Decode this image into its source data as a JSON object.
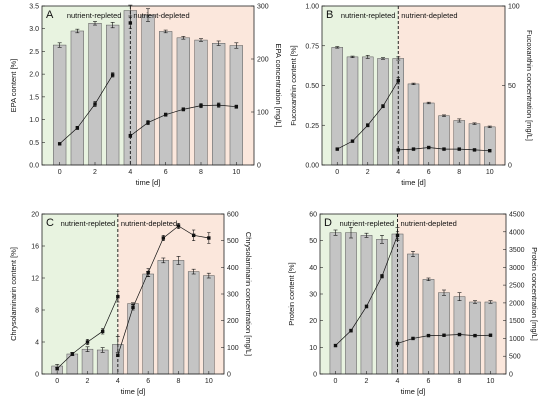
{
  "colors": {
    "replete_bg": "#e8f3e0",
    "deplete_bg": "#fbe7dc",
    "bar_fill": "#c4c4c4",
    "bar_stroke": "#555555",
    "line": "#111111"
  },
  "chart_data": [
    {
      "type": "bar",
      "panel": "A",
      "region_labels": [
        "nutrient-repleted",
        "nutrient-depleted"
      ],
      "xlabel": "time [d]",
      "ylabel": "EPA content [%]",
      "y2label": "EPA concentration [mg/L]",
      "x_ticks": [
        0,
        2,
        4,
        6,
        8,
        10
      ],
      "xlim": [
        -1,
        11
      ],
      "ylim": [
        0,
        3.5
      ],
      "y_ticks": [
        "0.0",
        "0.5",
        "1.0",
        "1.5",
        "2.0",
        "2.5",
        "3.0",
        "3.5"
      ],
      "y2lim": [
        0,
        300
      ],
      "y2_ticks": [
        0,
        100,
        200,
        300
      ],
      "switch_x": 4,
      "bars": {
        "x": [
          0,
          1,
          2,
          3,
          4,
          5,
          6,
          7,
          8,
          9,
          10
        ],
        "values": [
          2.64,
          2.95,
          3.12,
          3.08,
          3.4,
          3.3,
          2.94,
          2.8,
          2.75,
          2.68,
          2.63
        ],
        "errors": [
          0.05,
          0.04,
          0.04,
          0.06,
          0.12,
          0.14,
          0.03,
          0.03,
          0.03,
          0.05,
          0.06
        ]
      },
      "series": [
        {
          "x": [
            0,
            1,
            2,
            3
          ],
          "values": [
            40,
            70,
            115,
            170
          ],
          "errors": [
            2,
            3,
            5,
            4
          ]
        },
        {
          "x": [
            4
          ],
          "values": [
            268
          ],
          "errors": [
            10
          ]
        },
        {
          "x": [
            4,
            5,
            6,
            7,
            8,
            9,
            10
          ],
          "values": [
            55,
            80,
            95,
            105,
            112,
            113,
            110
          ],
          "errors": [
            3,
            4,
            3,
            3,
            4,
            4,
            3
          ]
        }
      ]
    },
    {
      "type": "bar",
      "panel": "B",
      "region_labels": [
        "nutrient-repleted",
        "nutrient-depleted"
      ],
      "xlabel": "time [d]",
      "ylabel": "Fucoxanthin content [%]",
      "y2label": "Fucoxanthin concentration [mg/L]",
      "x_ticks": [
        0,
        2,
        4,
        6,
        8,
        10
      ],
      "xlim": [
        -1,
        11
      ],
      "ylim": [
        0,
        1.0
      ],
      "y_ticks": [
        "0.00",
        "0.25",
        "0.50",
        "0.75",
        "1.00"
      ],
      "y2lim": [
        0,
        100
      ],
      "y2_ticks": [
        0,
        50,
        100
      ],
      "switch_x": 4,
      "bars": {
        "x": [
          0,
          1,
          2,
          3,
          4,
          5,
          6,
          7,
          8,
          9,
          10
        ],
        "values": [
          0.74,
          0.68,
          0.68,
          0.67,
          0.67,
          0.51,
          0.39,
          0.31,
          0.28,
          0.26,
          0.24
        ],
        "errors": [
          0.005,
          0.005,
          0.01,
          0.005,
          0.01,
          0.005,
          0.005,
          0.005,
          0.01,
          0.005,
          0.005
        ]
      },
      "series": [
        {
          "x": [
            0,
            1,
            2,
            3,
            4
          ],
          "values": [
            10,
            15,
            25,
            37,
            53
          ],
          "errors": [
            0.5,
            0.5,
            1,
            1,
            2
          ]
        },
        {
          "x": [
            4,
            5,
            6,
            7,
            8,
            9,
            10
          ],
          "values": [
            9.5,
            10,
            11,
            10,
            10,
            9.5,
            9
          ],
          "errors": [
            0.5,
            0.5,
            0.5,
            0.5,
            0.5,
            0.5,
            0.5
          ]
        }
      ]
    },
    {
      "type": "bar",
      "panel": "C",
      "region_labels": [
        "nutrient-repleted",
        "nutrient-depleted"
      ],
      "xlabel": "time [d]",
      "ylabel": "Chrysolaminarin content [%]",
      "y2label": "Chrysolaminarin concentration [mg/L]",
      "x_ticks": [
        0,
        2,
        4,
        6,
        8,
        10
      ],
      "xlim": [
        -1,
        11
      ],
      "ylim": [
        0,
        20
      ],
      "y_ticks": [
        "0",
        "4",
        "8",
        "12",
        "16",
        "20"
      ],
      "y2lim": [
        0,
        600
      ],
      "y2_ticks": [
        0,
        100,
        200,
        300,
        400,
        500,
        600
      ],
      "switch_x": 4,
      "bars": {
        "x": [
          0,
          1,
          2,
          3,
          4,
          5,
          6,
          7,
          8,
          9,
          10
        ],
        "values": [
          1.0,
          2.5,
          3.1,
          3.0,
          3.7,
          8.8,
          12.5,
          14.2,
          14.2,
          12.8,
          12.3
        ],
        "errors": [
          0.2,
          0.2,
          0.3,
          0.3,
          1.0,
          0.1,
          0.3,
          0.3,
          0.5,
          0.3,
          0.3
        ]
      },
      "series": [
        {
          "x": [
            0,
            1,
            2,
            3,
            4
          ],
          "values": [
            20,
            75,
            120,
            160,
            290
          ],
          "errors": [
            5,
            5,
            10,
            10,
            20
          ]
        },
        {
          "x": [
            4,
            5,
            6,
            7,
            8,
            9,
            10
          ],
          "values": [
            70,
            250,
            380,
            510,
            555,
            520,
            510
          ],
          "errors": [
            5,
            10,
            15,
            10,
            10,
            20,
            20
          ]
        }
      ]
    },
    {
      "type": "bar",
      "panel": "D",
      "region_labels": [
        "nutrient-repleted",
        "nutrient-depleted"
      ],
      "xlabel": "time [d]",
      "ylabel": "Protein content [%]",
      "y2label": "Protein concentration [mg/L]",
      "x_ticks": [
        0,
        2,
        4,
        6,
        8,
        10
      ],
      "xlim": [
        -1,
        11
      ],
      "ylim": [
        0,
        60
      ],
      "y_ticks": [
        "0",
        "10",
        "20",
        "30",
        "40",
        "50",
        "60"
      ],
      "y2lim": [
        0,
        4500
      ],
      "y2_ticks": [
        0,
        500,
        1000,
        1500,
        2000,
        2500,
        3000,
        3500,
        4000,
        4500
      ],
      "switch_x": 4,
      "bars": {
        "x": [
          0,
          1,
          2,
          3,
          4,
          5,
          6,
          7,
          8,
          9,
          10
        ],
        "values": [
          53,
          53,
          52,
          50.5,
          52.5,
          45,
          35.5,
          30.5,
          29,
          27,
          27
        ],
        "errors": [
          1,
          2,
          0.8,
          1.5,
          2.5,
          1,
          0.5,
          1,
          1.5,
          0.5,
          0.5
        ]
      },
      "series": [
        {
          "x": [
            0,
            1,
            2,
            3,
            4
          ],
          "values": [
            800,
            1220,
            1900,
            2750,
            3900
          ],
          "errors": [
            30,
            40,
            40,
            50,
            100
          ]
        },
        {
          "x": [
            4,
            5,
            6,
            7,
            8,
            9,
            10
          ],
          "values": [
            860,
            1000,
            1080,
            1090,
            1110,
            1080,
            1090
          ],
          "errors": [
            20,
            20,
            20,
            20,
            20,
            20,
            20
          ]
        }
      ]
    }
  ]
}
